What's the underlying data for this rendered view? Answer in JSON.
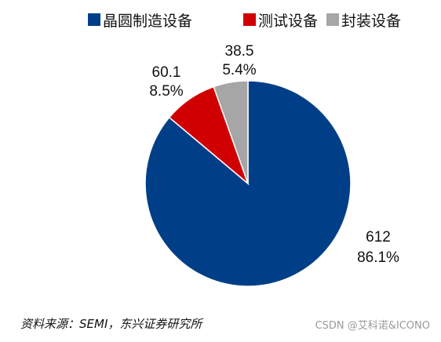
{
  "chart_data": {
    "type": "pie",
    "categories": [
      "晶圆制造设备",
      "测试设备",
      "封装设备"
    ],
    "values": [
      612,
      60.1,
      38.5
    ],
    "percent_labels": [
      "86.1%",
      "8.5%",
      "5.4%"
    ],
    "value_labels": [
      "612",
      "60.1",
      "38.5"
    ],
    "colors": [
      "#003f87",
      "#d10000",
      "#a6a6a6"
    ],
    "start_angle_deg": 0,
    "direction": "clockwise",
    "legend_position": "top"
  },
  "source": "资料来源：SEMI，东兴证券研究所",
  "watermark": "CSDN @艾科诺&ICONO"
}
